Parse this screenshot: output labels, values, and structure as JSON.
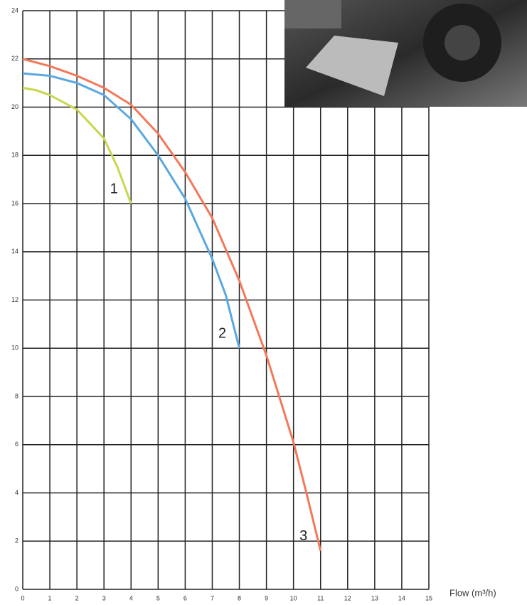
{
  "chart_data": {
    "type": "line",
    "x_label": "Flow (m³/h)",
    "xlim": [
      0,
      15
    ],
    "xticks": [
      0,
      1,
      2,
      3,
      4,
      5,
      6,
      7,
      8,
      9,
      10,
      11,
      12,
      13,
      14,
      15
    ],
    "ylim": [
      0,
      24
    ],
    "yticks": [
      0,
      2,
      4,
      6,
      8,
      10,
      12,
      14,
      16,
      18,
      20,
      22,
      24
    ],
    "grid": true,
    "series": [
      {
        "name": "1",
        "color": "#c9d64e",
        "x": [
          0,
          0.5,
          1,
          1.5,
          2,
          2.5,
          3,
          3.5,
          4
        ],
        "values": [
          20.8,
          20.7,
          20.5,
          20.2,
          19.9,
          19.3,
          18.7,
          17.5,
          16.0
        ]
      },
      {
        "name": "2",
        "color": "#5aa8e0",
        "x": [
          0,
          1,
          2,
          3,
          4,
          5,
          6,
          7,
          7.5,
          8
        ],
        "values": [
          21.4,
          21.3,
          21.0,
          20.5,
          19.5,
          18.0,
          16.2,
          13.7,
          12.2,
          10.0
        ]
      },
      {
        "name": "3",
        "color": "#f2795a",
        "x": [
          0,
          1,
          2,
          3,
          4,
          5,
          6,
          7,
          8,
          9,
          10,
          10.5,
          11
        ],
        "values": [
          22.0,
          21.7,
          21.3,
          20.8,
          20.1,
          18.9,
          17.3,
          15.4,
          12.8,
          9.7,
          6.1,
          3.9,
          1.6
        ]
      }
    ]
  }
}
